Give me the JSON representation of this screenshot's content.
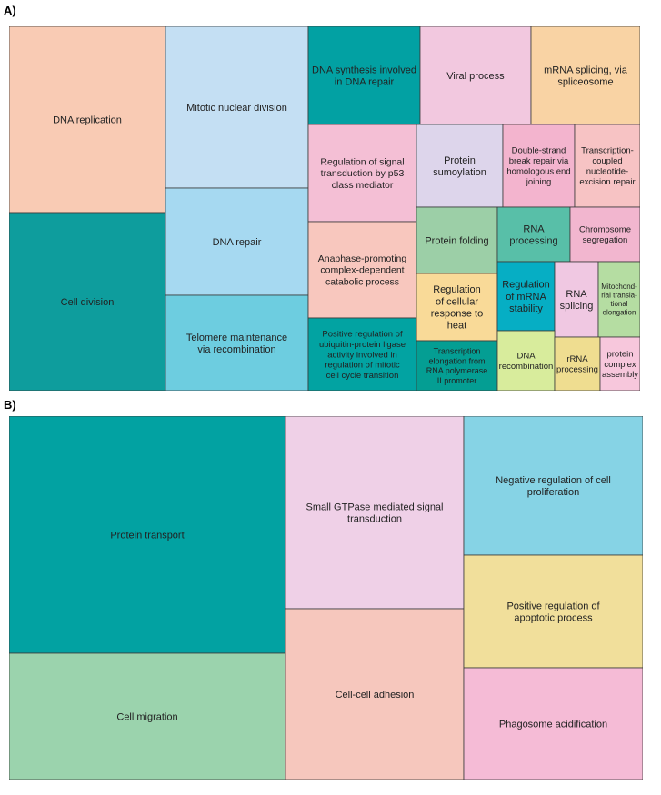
{
  "panel_a_label": "A)",
  "panel_b_label": "B)",
  "chart_data": [
    {
      "type": "treemap",
      "panel": "A)",
      "tiles": [
        {
          "label": "DNA replication",
          "color": "#f9cbb4"
        },
        {
          "label": "Cell division",
          "color": "#0e9d9d"
        },
        {
          "label": "Mitotic nuclear division",
          "color": "#c4dff3"
        },
        {
          "label": "DNA repair",
          "color": "#a6d9f1"
        },
        {
          "label": "Telomere maintenance via recombination",
          "color": "#6dcde0"
        },
        {
          "label": "DNA synthesis involved in DNA repair",
          "color": "#02a1a3"
        },
        {
          "label": "Viral process",
          "color": "#f2c8df"
        },
        {
          "label": "mRNA splicing, via spliceosome",
          "color": "#f9d3a4"
        },
        {
          "label": "Regulation of signal transduction by p53 class mediator",
          "color": "#f4bfd5"
        },
        {
          "label": "Protein sumoylation",
          "color": "#ddd5eb"
        },
        {
          "label": "Double-strand break repair via homologous end joining",
          "color": "#f3b4ce"
        },
        {
          "label": "Transcription-coupled nucleotide-excision repair",
          "color": "#f7c3c4"
        },
        {
          "label": "Anaphase-promoting complex-dependent catabolic process",
          "color": "#f8c7be"
        },
        {
          "label": "Protein folding",
          "color": "#9ccfa7"
        },
        {
          "label": "RNA processing",
          "color": "#58bfa8"
        },
        {
          "label": "Chromosome segregation",
          "color": "#f2b6cf"
        },
        {
          "label": "Regulation of cellular response to heat",
          "color": "#f9da98"
        },
        {
          "label": "Regulation of mRNA stability",
          "color": "#06aec4"
        },
        {
          "label": "RNA splicing",
          "color": "#f0c8e2"
        },
        {
          "label": "Mitochondrial translational elongation",
          "color": "#b5dda2"
        },
        {
          "label": "Positive regulation of ubiquitin-protein ligase activity involved in regulation of mitotic cell cycle transition",
          "color": "#02a3a2"
        },
        {
          "label": "Transcription elongation from RNA polymerase II promoter",
          "color": "#049e93"
        },
        {
          "label": "DNA recombination",
          "color": "#d8ec9c"
        },
        {
          "label": "rRNA processing",
          "color": "#efdd90"
        },
        {
          "label": "protein complex assembly",
          "color": "#f7c7dc"
        }
      ]
    },
    {
      "type": "treemap",
      "panel": "B)",
      "tiles": [
        {
          "label": "Protein transport",
          "color": "#02a2a2"
        },
        {
          "label": "Cell migration",
          "color": "#9bd3ad"
        },
        {
          "label": "Small GTPase mediated signal transduction",
          "color": "#efd0e7"
        },
        {
          "label": "Cell-cell adhesion",
          "color": "#f6c7bd"
        },
        {
          "label": "Negative regulation of cell proliferation",
          "color": "#86d3e5"
        },
        {
          "label": "Positive regulation of apoptotic process",
          "color": "#f1df9b"
        },
        {
          "label": "Phagosome acidification",
          "color": "#f5bbd6"
        }
      ]
    }
  ]
}
